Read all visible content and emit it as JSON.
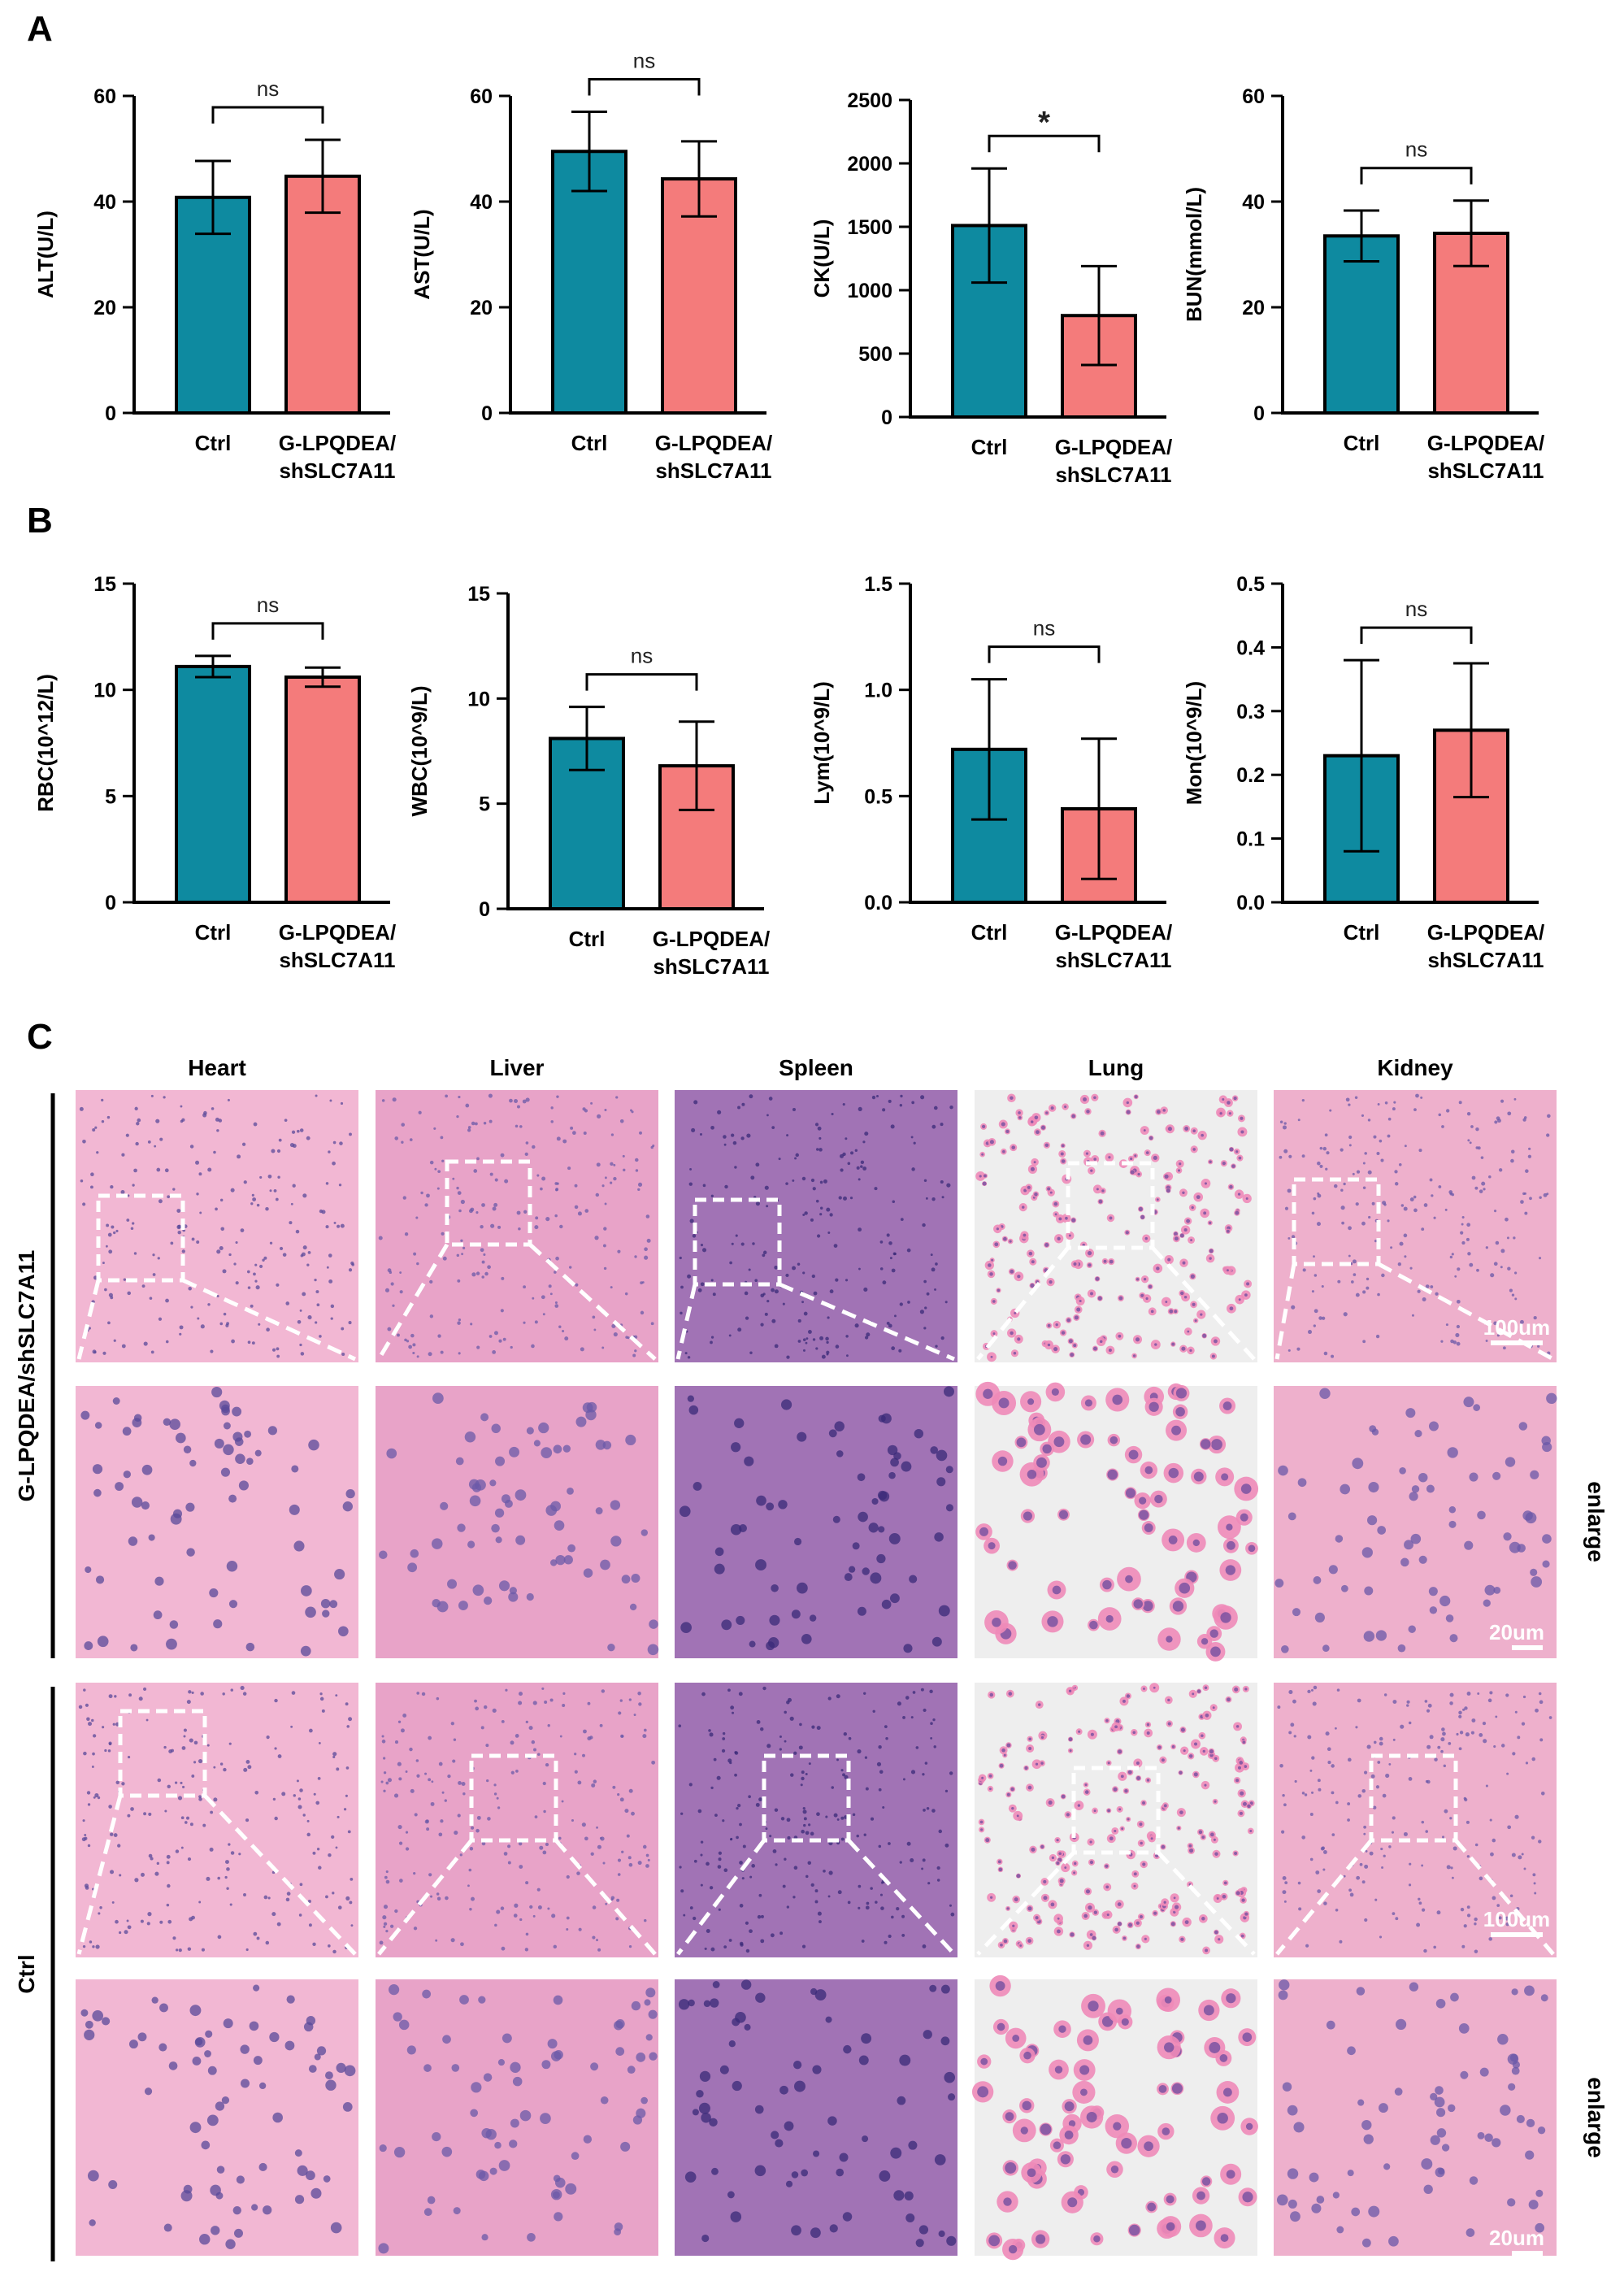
{
  "panel_labels": {
    "a": "A",
    "b": "B",
    "c": "C"
  },
  "colors": {
    "ctrl": "#0e8aa0",
    "treat": "#f47b7b",
    "axis": "#000000"
  },
  "chart_data": [
    {
      "id": "alt",
      "type": "bar",
      "ylabel": "ALT(U/L)",
      "categories": [
        "Ctrl",
        "G-LPQDEA/\nshSLC7A11"
      ],
      "values": [
        40.8,
        44.8
      ],
      "errors": [
        6.9,
        6.9
      ],
      "ylim": [
        0,
        60
      ],
      "yticks": [
        0,
        20,
        40,
        60
      ],
      "ytick_labels": [
        "0",
        "20",
        "40",
        "60"
      ],
      "significance": "ns"
    },
    {
      "id": "ast",
      "type": "bar",
      "ylabel": "AST(U/L)",
      "categories": [
        "Ctrl",
        "G-LPQDEA/\nshSLC7A11"
      ],
      "values": [
        49.5,
        44.3
      ],
      "errors": [
        7.5,
        7.1
      ],
      "ylim": [
        0,
        60
      ],
      "yticks": [
        0,
        20,
        40,
        60
      ],
      "ytick_labels": [
        "0",
        "20",
        "40",
        "60"
      ],
      "significance": "ns"
    },
    {
      "id": "ck",
      "type": "bar",
      "ylabel": "CK(U/L)",
      "categories": [
        "Ctrl",
        "G-LPQDEA/\nshSLC7A11"
      ],
      "values": [
        1510,
        800
      ],
      "errors": [
        450,
        390
      ],
      "ylim": [
        0,
        2500
      ],
      "yticks": [
        0,
        500,
        1000,
        1500,
        2000,
        2500
      ],
      "ytick_labels": [
        "0",
        "500",
        "1000",
        "1500",
        "2000",
        "2500"
      ],
      "significance": "*"
    },
    {
      "id": "bun",
      "type": "bar",
      "ylabel": "BUN(mmol/L)",
      "categories": [
        "Ctrl",
        "G-LPQDEA/\nshSLC7A11"
      ],
      "values": [
        33.5,
        34.0
      ],
      "errors": [
        4.8,
        6.2
      ],
      "ylim": [
        0,
        60
      ],
      "yticks": [
        0,
        20,
        40,
        60
      ],
      "ytick_labels": [
        "0",
        "20",
        "40",
        "60"
      ],
      "significance": "ns"
    },
    {
      "id": "rbc",
      "type": "bar",
      "ylabel": "RBC(10^12/L)",
      "categories": [
        "Ctrl",
        "G-LPQDEA/\nshSLC7A11"
      ],
      "values": [
        11.1,
        10.6
      ],
      "errors": [
        0.5,
        0.45
      ],
      "ylim": [
        0,
        15
      ],
      "yticks": [
        0,
        5,
        10,
        15
      ],
      "ytick_labels": [
        "0",
        "5",
        "10",
        "15"
      ],
      "significance": "ns"
    },
    {
      "id": "wbc",
      "type": "bar",
      "ylabel": "WBC(10^9/L)",
      "categories": [
        "Ctrl",
        "G-LPQDEA/\nshSLC7A11"
      ],
      "values": [
        8.1,
        6.8
      ],
      "errors": [
        1.5,
        2.1
      ],
      "ylim": [
        0,
        15
      ],
      "yticks": [
        0,
        5,
        10,
        15
      ],
      "ytick_labels": [
        "0",
        "5",
        "10",
        "15"
      ],
      "significance": "ns"
    },
    {
      "id": "lym",
      "type": "bar",
      "ylabel": "Lym(10^9/L)",
      "categories": [
        "Ctrl",
        "G-LPQDEA/\nshSLC7A11"
      ],
      "values": [
        0.72,
        0.44
      ],
      "errors": [
        0.33,
        0.33
      ],
      "ylim": [
        0,
        1.5
      ],
      "yticks": [
        0,
        0.5,
        1.0,
        1.5
      ],
      "ytick_labels": [
        "0.0",
        "0.5",
        "1.0",
        "1.5"
      ],
      "significance": "ns"
    },
    {
      "id": "mon",
      "type": "bar",
      "ylabel": "Mon(10^9/L)",
      "categories": [
        "Ctrl",
        "G-LPQDEA/\nshSLC7A11"
      ],
      "values": [
        0.23,
        0.27
      ],
      "errors": [
        0.15,
        0.105
      ],
      "ylim": [
        0,
        0.5
      ],
      "yticks": [
        0,
        0.1,
        0.2,
        0.3,
        0.4,
        0.5
      ],
      "ytick_labels": [
        "0.0",
        "0.1",
        "0.2",
        "0.3",
        "0.4",
        "0.5"
      ],
      "significance": "ns"
    }
  ],
  "histology": {
    "columns": [
      "Heart",
      "Liver",
      "Spleen",
      "Lung",
      "Kidney"
    ],
    "groups": [
      "G-LPQDEA/shSLC7A11",
      "Ctrl"
    ],
    "enlarge_label": "enlarge",
    "scale_low": "100um",
    "scale_high": "20um",
    "tissue_palette": [
      {
        "bg": "#f2b7d3",
        "nuc": "#5a4a9a",
        "accent": "#ffffff"
      },
      {
        "bg": "#e8a3c8",
        "nuc": "#6b5aa8",
        "accent": "#f6d5e8"
      },
      {
        "bg": "#a173b5",
        "nuc": "#3a2a78",
        "accent": "#e06a9a"
      },
      {
        "bg": "#eeeeee",
        "nuc": "#6b4b9e",
        "accent": "#ee8ab8"
      },
      {
        "bg": "#eeb0cc",
        "nuc": "#6a58a8",
        "accent": "#f3c6dc"
      }
    ]
  }
}
